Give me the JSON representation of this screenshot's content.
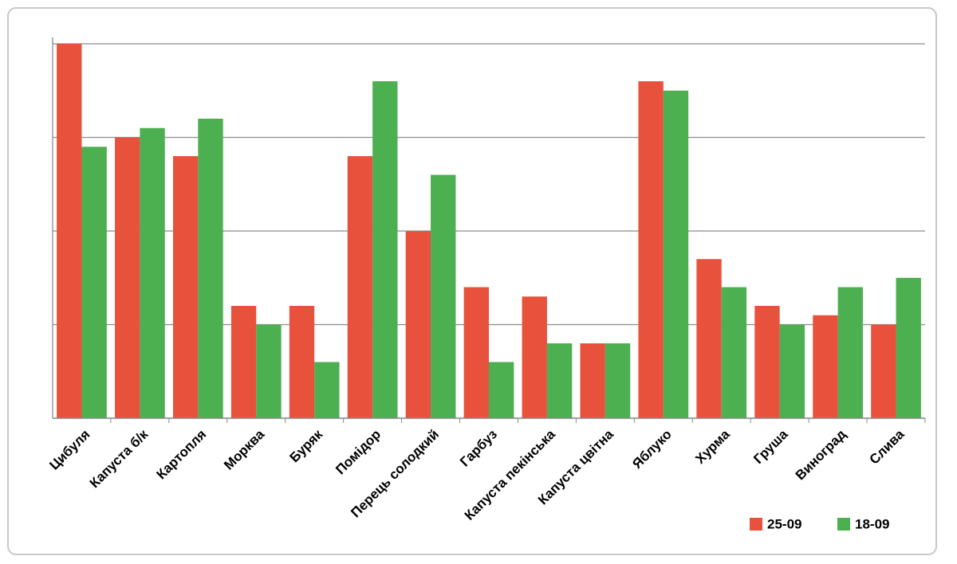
{
  "chart_data": {
    "type": "bar",
    "categories": [
      "Цибуля",
      "Капуста б/к",
      "Картопля",
      "Морква",
      "Буряк",
      "Помідор",
      "Перець солодкий",
      "Гарбуз",
      "Капуста пекінська",
      "Капуста цвітна",
      "Яблуко",
      "Хурма",
      "Груша",
      "Виноград",
      "Слива"
    ],
    "series": [
      {
        "name": "25-09",
        "color": "#e8523c",
        "values": [
          40,
          30,
          28,
          12,
          12,
          28,
          20,
          14,
          13,
          8,
          36,
          17,
          12,
          11,
          10
        ]
      },
      {
        "name": "18-09",
        "color": "#4caf50",
        "values": [
          29,
          31,
          32,
          10,
          6,
          36,
          26,
          6,
          8,
          8,
          35,
          14,
          10,
          14,
          15
        ]
      }
    ],
    "ylim": [
      0,
      40
    ],
    "yticks": [
      0,
      10,
      20,
      30,
      40
    ],
    "grid": true,
    "legend": "bottom-right"
  }
}
